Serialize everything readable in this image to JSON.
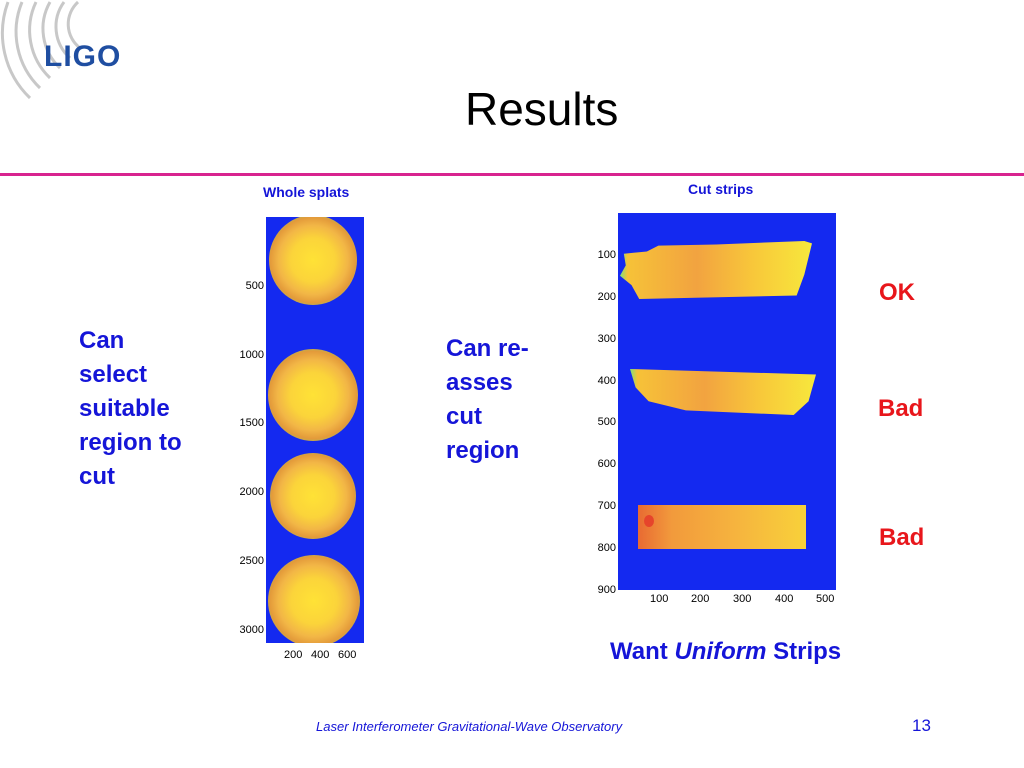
{
  "header": {
    "logo_text": "LIGO",
    "title": "Results",
    "rule_color": "#d8238f"
  },
  "left_panel": {
    "caption": "Whole splats",
    "y_ticks": [
      "500",
      "1000",
      "1500",
      "2000",
      "2500",
      "3000"
    ],
    "x_ticks": [
      "200",
      "400",
      "600"
    ],
    "note": [
      "Can",
      "select",
      "suitable",
      "region to",
      "cut"
    ]
  },
  "right_panel": {
    "caption": "Cut strips",
    "y_ticks": [
      "100",
      "200",
      "300",
      "400",
      "500",
      "600",
      "700",
      "800",
      "900"
    ],
    "x_ticks": [
      "100",
      "200",
      "300",
      "400",
      "500"
    ],
    "note": [
      "Can re-",
      "asses",
      "cut",
      "region"
    ],
    "labels": [
      "OK",
      "Bad",
      "Bad"
    ]
  },
  "want": {
    "pre": "Want",
    "emph": "Uniform",
    "post": "Strips"
  },
  "footer": {
    "text": "Laser Interferometer Gravitational-Wave Observatory",
    "page_number": "13"
  }
}
